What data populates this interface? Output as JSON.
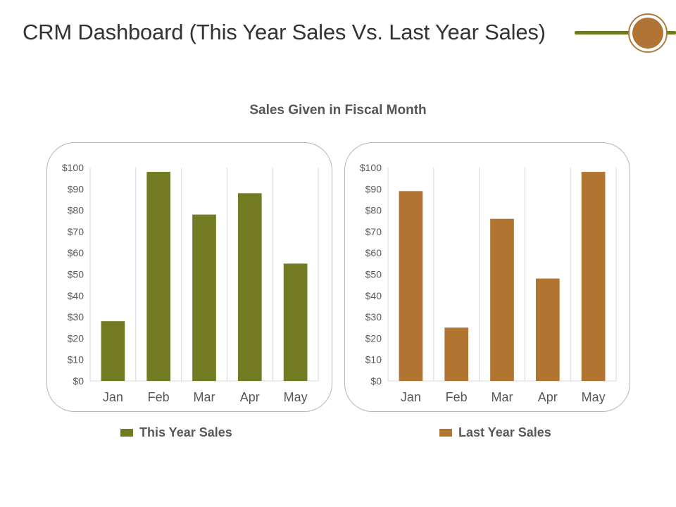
{
  "header": {
    "title": "CRM Dashboard (This Year Sales Vs. Last Year Sales)"
  },
  "colors": {
    "this_year": "#737b22",
    "last_year": "#b17531",
    "grid": "#d9d9d9",
    "axis_text": "#595959",
    "accent_rule": "#6e7a22",
    "accent_dot": "#b07535"
  },
  "chart_data": [
    {
      "type": "bar",
      "title": "Sales Given in Fiscal Month",
      "categories": [
        "Jan",
        "Feb",
        "Mar",
        "Apr",
        "May"
      ],
      "series": [
        {
          "name": "This Year Sales",
          "values": [
            28,
            98,
            78,
            88,
            55
          ]
        }
      ],
      "ylim": [
        0,
        100
      ],
      "yticks": [
        0,
        10,
        20,
        30,
        40,
        50,
        60,
        70,
        80,
        90,
        100
      ],
      "ytick_labels": [
        "$0",
        "$10",
        "$20",
        "$30",
        "$40",
        "$50",
        "$60",
        "$70",
        "$80",
        "$90",
        "$100"
      ],
      "grid": "vertical category separators",
      "legend": "bottom"
    },
    {
      "type": "bar",
      "categories": [
        "Jan",
        "Feb",
        "Mar",
        "Apr",
        "May"
      ],
      "series": [
        {
          "name": "Last Year Sales",
          "values": [
            89,
            25,
            76,
            48,
            98
          ]
        }
      ],
      "ylim": [
        0,
        100
      ],
      "yticks": [
        0,
        10,
        20,
        30,
        40,
        50,
        60,
        70,
        80,
        90,
        100
      ],
      "ytick_labels": [
        "$0",
        "$10",
        "$20",
        "$30",
        "$40",
        "$50",
        "$60",
        "$70",
        "$80",
        "$90",
        "$100"
      ],
      "grid": "vertical category separators",
      "legend": "bottom"
    }
  ]
}
